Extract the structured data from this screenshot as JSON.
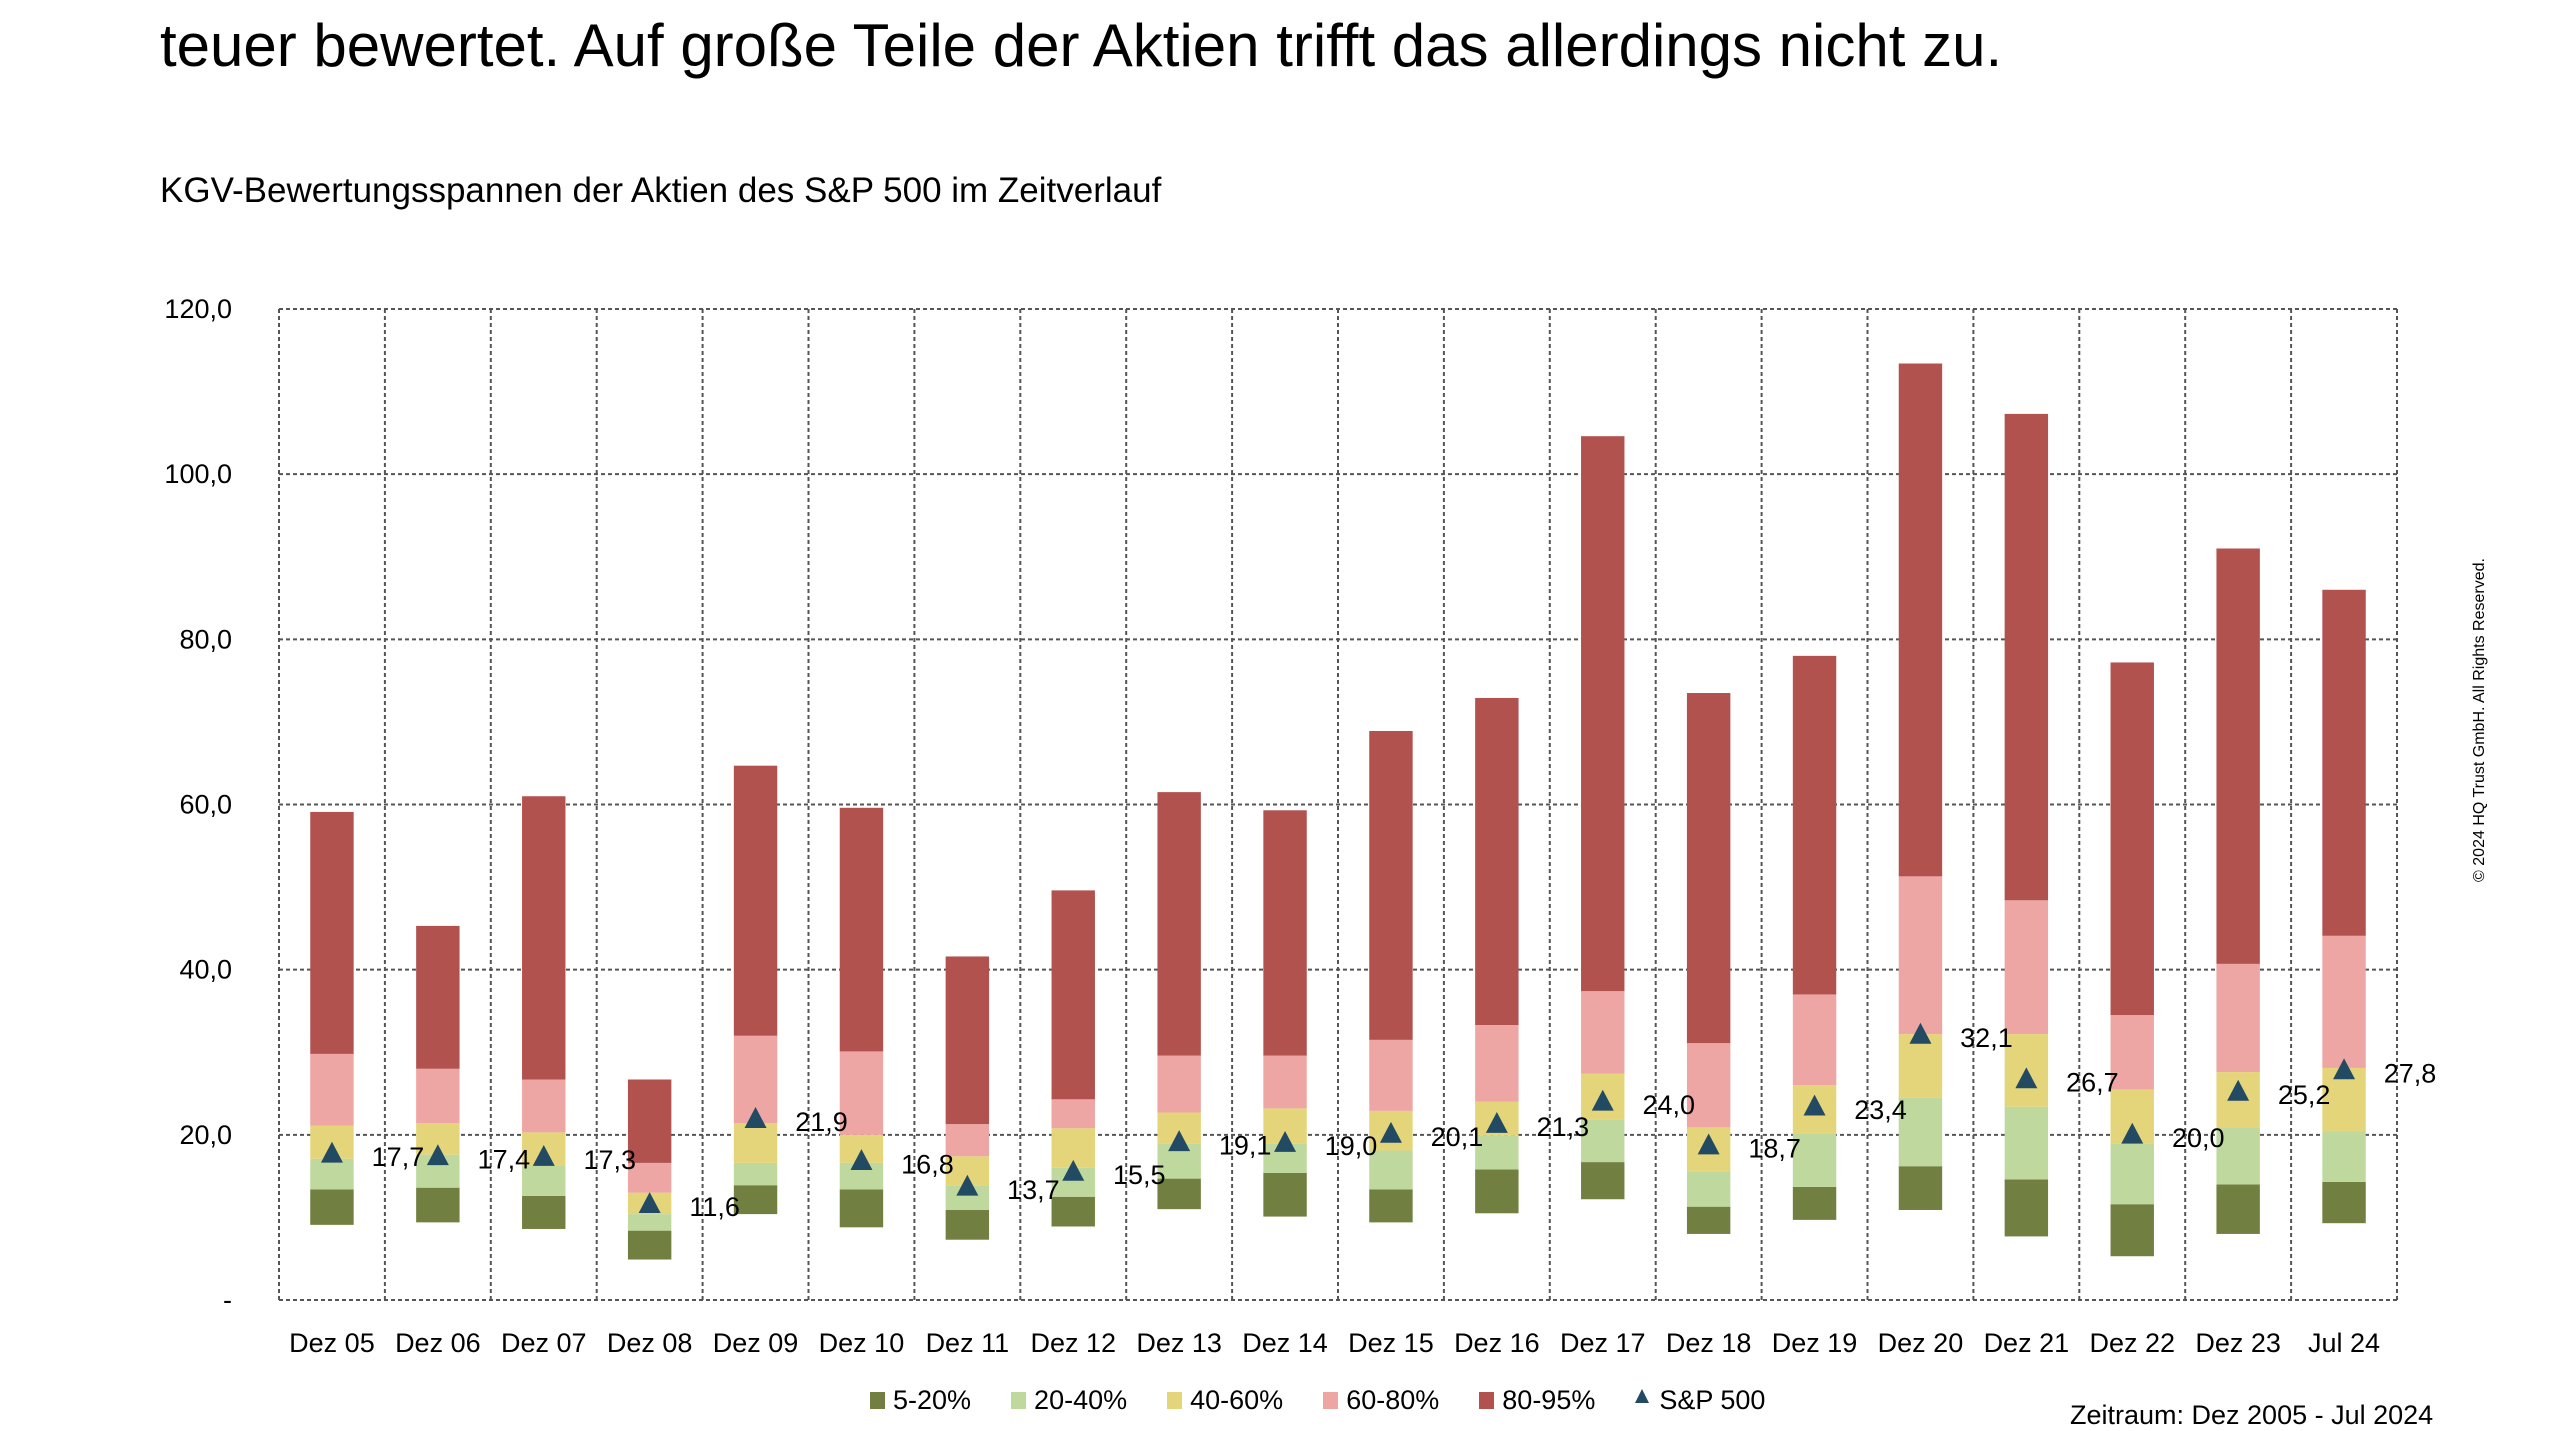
{
  "page": {
    "heading_line": "teuer bewertet. Auf große Teile der Aktien trifft das allerdings nicht zu.",
    "chart_title": "KGV-Bewertungsspannen der Aktien des S&P 500 im Zeitverlauf",
    "period_note": "Zeitraum: Dez 2005 - Jul 2024",
    "copyright": "© 2024 HQ Trust GmbH. All Rights Reserved."
  },
  "legend": [
    {
      "label": "5-20%",
      "color": "#718040",
      "type": "square"
    },
    {
      "label": "20-40%",
      "color": "#bfd89d",
      "type": "square"
    },
    {
      "label": "40-60%",
      "color": "#e5d57a",
      "type": "square"
    },
    {
      "label": "60-80%",
      "color": "#eda6a3",
      "type": "square"
    },
    {
      "label": "80-95%",
      "color": "#b2524f",
      "type": "square"
    },
    {
      "label": "S&P 500",
      "color": "#234a63",
      "type": "triangle"
    }
  ],
  "chart_data": {
    "type": "bar",
    "subtype": "floating-stacked-range-with-marker",
    "title": "KGV-Bewertungsspannen der Aktien des S&P 500 im Zeitverlauf",
    "xlabel": "",
    "ylabel": "",
    "ylim": [
      0,
      120
    ],
    "yticks": [
      0,
      20,
      40,
      60,
      80,
      100,
      120
    ],
    "ytick_labels": [
      "-",
      "20,0",
      "40,0",
      "60,0",
      "80,0",
      "100,0",
      "120,0"
    ],
    "grid": true,
    "legend_position": "bottom",
    "categories": [
      "Dez 05",
      "Dez 06",
      "Dez 07",
      "Dez 08",
      "Dez 09",
      "Dez 10",
      "Dez 11",
      "Dez 12",
      "Dez 13",
      "Dez 14",
      "Dez 15",
      "Dez 16",
      "Dez 17",
      "Dez 18",
      "Dez 19",
      "Dez 20",
      "Dez 21",
      "Dez 22",
      "Dez 23",
      "Jul 24"
    ],
    "percentile_boundaries_note": "Each bar spans the 5th to 95th percentile of P/E ratios; boundaries listed as [p5, p20, p40, p60, p80, p95]",
    "percentiles": [
      [
        9.1,
        13.4,
        17.1,
        21.1,
        29.8,
        59.1
      ],
      [
        9.4,
        13.6,
        17.6,
        21.4,
        28.0,
        45.3
      ],
      [
        8.6,
        12.6,
        16.3,
        20.3,
        26.7,
        61.0
      ],
      [
        4.9,
        8.4,
        10.4,
        13.0,
        16.6,
        26.7
      ],
      [
        10.4,
        13.9,
        16.6,
        21.4,
        32.0,
        64.7
      ],
      [
        8.8,
        13.4,
        16.6,
        20.0,
        30.1,
        59.6
      ],
      [
        7.3,
        10.9,
        13.9,
        17.4,
        21.3,
        41.6
      ],
      [
        8.9,
        12.5,
        16.0,
        20.8,
        24.3,
        49.6
      ],
      [
        11.0,
        14.7,
        18.9,
        22.7,
        29.6,
        61.5
      ],
      [
        10.1,
        15.4,
        18.9,
        23.2,
        29.6,
        59.3
      ],
      [
        9.4,
        13.4,
        18.1,
        22.9,
        31.5,
        68.9
      ],
      [
        10.5,
        15.8,
        19.9,
        24.0,
        33.3,
        72.9
      ],
      [
        12.2,
        16.7,
        21.8,
        27.4,
        37.4,
        104.6
      ],
      [
        8.0,
        11.3,
        15.6,
        20.9,
        31.1,
        73.5
      ],
      [
        9.7,
        13.7,
        20.2,
        26.0,
        37.0,
        78.0
      ],
      [
        10.9,
        16.2,
        24.5,
        32.2,
        51.3,
        113.4
      ],
      [
        7.7,
        14.6,
        23.4,
        32.2,
        48.4,
        107.3
      ],
      [
        5.3,
        11.6,
        18.9,
        25.5,
        34.5,
        77.2
      ],
      [
        8.0,
        14.0,
        20.9,
        27.6,
        40.7,
        91.0
      ],
      [
        9.3,
        14.3,
        20.4,
        28.1,
        44.1,
        86.0
      ]
    ],
    "series": [
      {
        "name": "5-20%",
        "color": "#718040"
      },
      {
        "name": "20-40%",
        "color": "#bfd89d"
      },
      {
        "name": "40-60%",
        "color": "#e5d57a"
      },
      {
        "name": "60-80%",
        "color": "#eda6a3"
      },
      {
        "name": "80-95%",
        "color": "#b2524f"
      },
      {
        "name": "S&P 500",
        "color": "#234a63",
        "marker": "triangle",
        "values": [
          17.7,
          17.4,
          17.3,
          11.6,
          21.9,
          16.8,
          13.7,
          15.5,
          19.1,
          19.0,
          20.1,
          21.3,
          24.0,
          18.7,
          23.4,
          32.1,
          26.7,
          20.0,
          25.2,
          27.8
        ],
        "labels": [
          "17,7",
          "17,4",
          "17,3",
          "11,6",
          "21,9",
          "16,8",
          "13,7",
          "15,5",
          "19,1",
          "19,0",
          "20,1",
          "21,3",
          "24,0",
          "18,7",
          "23,4",
          "32,1",
          "26,7",
          "20,0",
          "25,2",
          "27,8"
        ]
      }
    ]
  }
}
